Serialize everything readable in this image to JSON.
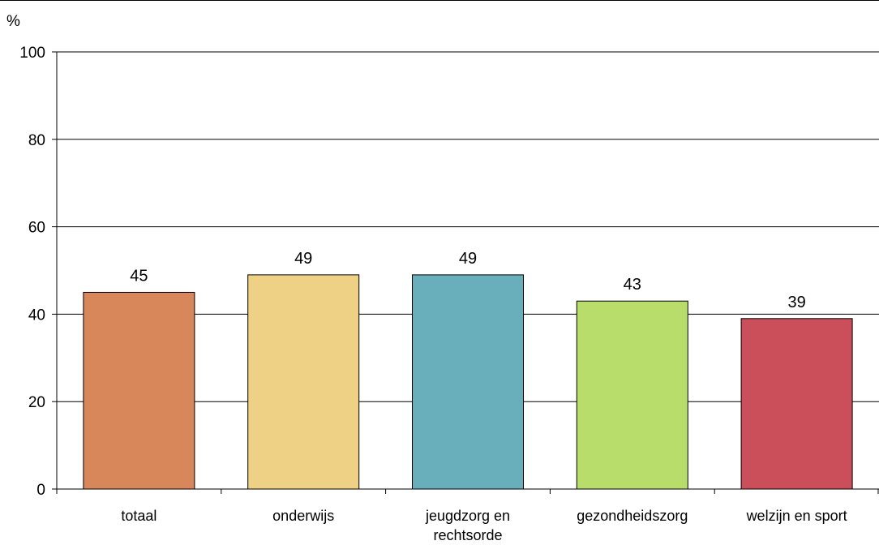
{
  "chart_data": {
    "type": "bar",
    "ylabel": "%",
    "ylim": [
      0,
      100
    ],
    "yticks": [
      0,
      20,
      40,
      60,
      80,
      100
    ],
    "grid": true,
    "categories": [
      [
        "totaal"
      ],
      [
        "onderwijs"
      ],
      [
        "jeugdzorg en",
        "rechtsorde"
      ],
      [
        "gezondheidszorg"
      ],
      [
        "welzijn en sport"
      ]
    ],
    "values": [
      45,
      49,
      49,
      43,
      39
    ],
    "data_labels": [
      "45",
      "49",
      "49",
      "43",
      "39"
    ],
    "colors": [
      "#d8875a",
      "#eed184",
      "#68afbb",
      "#b8dd6b",
      "#cb4f5b"
    ]
  }
}
